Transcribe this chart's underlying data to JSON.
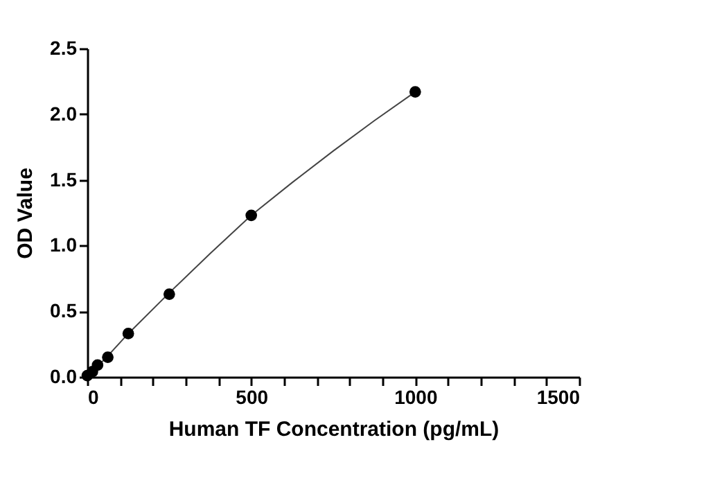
{
  "chart_data": {
    "type": "scatter",
    "xlabel": "Human TF Concentration (pg/mL)",
    "ylabel": "OD Value",
    "xlim": [
      0,
      1500
    ],
    "ylim": [
      0,
      2.5
    ],
    "xticks": [
      0,
      {
        "value": 100,
        "label": null
      },
      {
        "value": 200,
        "label": null
      },
      {
        "value": 300,
        "label": null
      },
      {
        "value": 400,
        "label": null
      },
      500,
      {
        "value": 600,
        "label": null
      },
      {
        "value": 700,
        "label": null
      },
      {
        "value": 800,
        "label": null
      },
      {
        "value": 900,
        "label": null
      },
      1000,
      {
        "value": 1100,
        "label": null
      },
      {
        "value": 1200,
        "label": null
      },
      {
        "value": 1300,
        "label": null
      },
      {
        "value": 1400,
        "label": null
      },
      1500
    ],
    "yticks": [
      {
        "value": 0,
        "label": "0.0"
      },
      0.5,
      {
        "value": 1,
        "label": "1.0"
      },
      1.5,
      {
        "value": 2,
        "label": "2.0"
      },
      2.5
    ],
    "grid": false,
    "marker": "circle",
    "series": [
      {
        "type": "line",
        "marker": "none",
        "color": "#444444",
        "line_style": "solid",
        "x": [
          0,
          15.6,
          31.25,
          62.5,
          125,
          250,
          375,
          500,
          625,
          750,
          875,
          1000
        ],
        "values": [
          0.01,
          0.04,
          0.08,
          0.16,
          0.33,
          0.64,
          0.94,
          1.23,
          1.48,
          1.72,
          1.95,
          2.17
        ]
      },
      {
        "color": "#000000",
        "x": [
          0,
          15.6,
          31.25,
          62.5,
          125,
          250,
          500,
          1000
        ],
        "values": [
          0.01,
          0.04,
          0.09,
          0.15,
          0.33,
          0.63,
          1.23,
          2.17
        ]
      }
    ]
  }
}
